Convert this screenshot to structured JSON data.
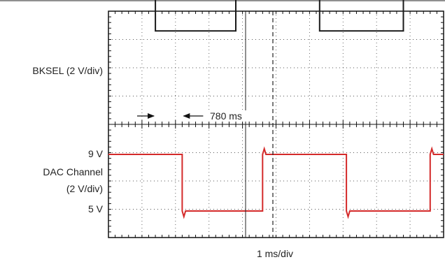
{
  "chart_data": {
    "type": "line",
    "title": "",
    "xlabel": "1 ms/div",
    "divisions": {
      "x": 10,
      "y": 8
    },
    "grid": true,
    "colors": {
      "bksel": "#1a1a1a",
      "dac": "#d42a2a",
      "cursor": "#222222"
    },
    "series": [
      {
        "name": "BKSEL (2 V/div)",
        "trace": [
          [
            0.0,
            6.3
          ],
          [
            1.4,
            6.3
          ],
          [
            1.4,
            3.3
          ],
          [
            3.8,
            3.3
          ],
          [
            3.8,
            6.3
          ],
          [
            6.3,
            6.3
          ],
          [
            6.3,
            3.3
          ],
          [
            8.8,
            3.3
          ],
          [
            8.8,
            6.3
          ],
          [
            10.0,
            6.3
          ]
        ]
      },
      {
        "name": "DAC Channel (2 V/div)",
        "level_labels": [
          "9 V",
          "5 V"
        ],
        "trace": [
          [
            0.0,
            2.0
          ],
          [
            2.2,
            2.0
          ],
          [
            2.2,
            0.0
          ],
          [
            2.25,
            -0.2
          ],
          [
            2.3,
            0.0
          ],
          [
            4.6,
            0.0
          ],
          [
            4.6,
            2.0
          ],
          [
            4.65,
            2.2
          ],
          [
            4.7,
            2.0
          ],
          [
            7.1,
            2.0
          ],
          [
            7.1,
            0.0
          ],
          [
            7.15,
            -0.2
          ],
          [
            7.2,
            0.0
          ],
          [
            9.6,
            0.0
          ],
          [
            9.6,
            2.0
          ],
          [
            9.65,
            2.2
          ],
          [
            9.7,
            2.0
          ],
          [
            10.0,
            2.0
          ]
        ]
      }
    ],
    "annotations": [
      {
        "text": "780 ms",
        "from_x": 1.4,
        "to_x": 2.2
      }
    ]
  }
}
